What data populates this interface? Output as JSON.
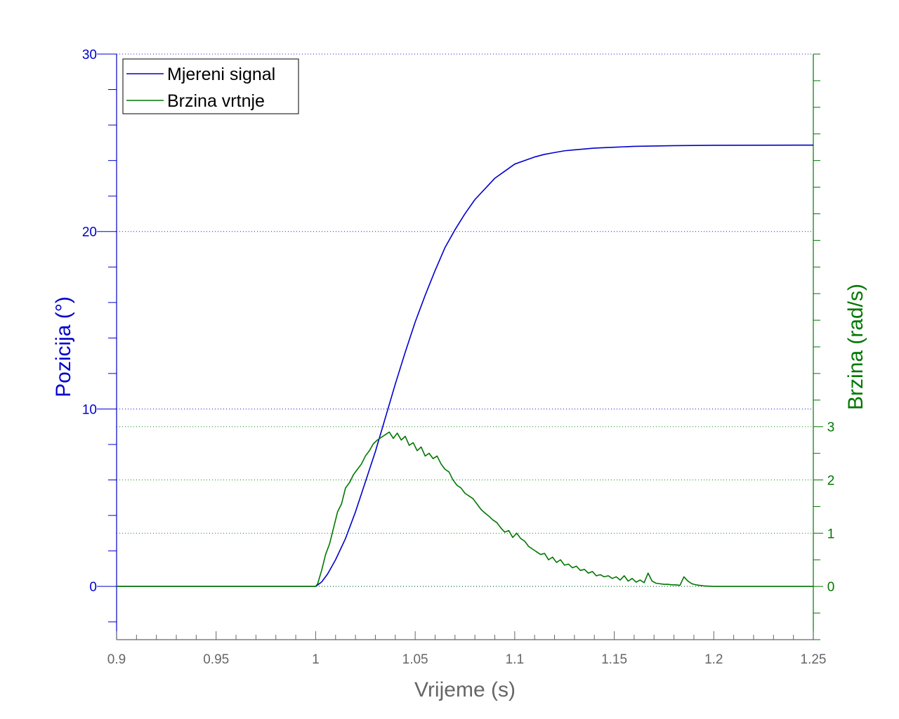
{
  "chart_data": {
    "type": "line",
    "title": "",
    "xlabel": "Vrijeme (s)",
    "ylabel_left": "Pozicija (°)",
    "ylabel_right": "Brzina (rad/s)",
    "xlim": [
      0.9,
      1.25
    ],
    "ylim_left": [
      -3,
      30
    ],
    "ylim_right": [
      -1,
      10
    ],
    "x_ticks": [
      "0.9",
      "0.95",
      "1",
      "1.05",
      "1.1",
      "1.15",
      "1.2",
      "1.25"
    ],
    "y_left_ticks": [
      "0",
      "10",
      "20",
      "30"
    ],
    "y_right_ticks": [
      "0",
      "1",
      "2",
      "3"
    ],
    "grid": "dotted horizontal",
    "legend_position": "top-left",
    "colors": {
      "left_axis": "#0000cc",
      "right_axis": "#007700",
      "axis_x": "#666666"
    },
    "series": [
      {
        "name": "Mjereni signal",
        "axis": "left",
        "color": "#0000cc",
        "x": [
          0.9,
          1.0,
          1.003,
          1.006,
          1.01,
          1.015,
          1.02,
          1.025,
          1.03,
          1.035,
          1.04,
          1.045,
          1.05,
          1.055,
          1.06,
          1.065,
          1.07,
          1.075,
          1.08,
          1.085,
          1.09,
          1.095,
          1.1,
          1.105,
          1.11,
          1.115,
          1.12,
          1.125,
          1.13,
          1.14,
          1.15,
          1.16,
          1.17,
          1.18,
          1.2,
          1.25
        ],
        "y": [
          0,
          0,
          0.25,
          0.7,
          1.5,
          2.7,
          4.2,
          5.9,
          7.6,
          9.5,
          11.4,
          13.2,
          14.9,
          16.4,
          17.8,
          19.1,
          20.1,
          21.0,
          21.8,
          22.4,
          23.0,
          23.4,
          23.8,
          24.0,
          24.2,
          24.35,
          24.45,
          24.55,
          24.6,
          24.7,
          24.75,
          24.8,
          24.82,
          24.84,
          24.86,
          24.87
        ]
      },
      {
        "name": "Brzina vrtnje",
        "axis": "right",
        "color": "#007700",
        "x": [
          0.9,
          1.0,
          1.001,
          1.003,
          1.005,
          1.007,
          1.009,
          1.011,
          1.013,
          1.015,
          1.017,
          1.019,
          1.021,
          1.023,
          1.025,
          1.027,
          1.029,
          1.031,
          1.033,
          1.035,
          1.037,
          1.039,
          1.041,
          1.043,
          1.045,
          1.047,
          1.049,
          1.051,
          1.053,
          1.055,
          1.057,
          1.059,
          1.061,
          1.063,
          1.065,
          1.067,
          1.069,
          1.071,
          1.073,
          1.075,
          1.077,
          1.079,
          1.081,
          1.083,
          1.085,
          1.087,
          1.089,
          1.091,
          1.093,
          1.095,
          1.097,
          1.099,
          1.101,
          1.103,
          1.105,
          1.107,
          1.109,
          1.111,
          1.113,
          1.115,
          1.117,
          1.119,
          1.121,
          1.123,
          1.125,
          1.127,
          1.129,
          1.131,
          1.133,
          1.135,
          1.137,
          1.139,
          1.141,
          1.143,
          1.145,
          1.147,
          1.149,
          1.151,
          1.153,
          1.155,
          1.157,
          1.159,
          1.161,
          1.163,
          1.165,
          1.167,
          1.169,
          1.171,
          1.173,
          1.175,
          1.177,
          1.179,
          1.181,
          1.183,
          1.185,
          1.187,
          1.189,
          1.191,
          1.193,
          1.195,
          1.2,
          1.25
        ],
        "y": [
          0,
          0,
          0.05,
          0.3,
          0.6,
          0.8,
          1.1,
          1.4,
          1.55,
          1.85,
          1.95,
          2.1,
          2.2,
          2.3,
          2.45,
          2.55,
          2.68,
          2.75,
          2.8,
          2.85,
          2.9,
          2.78,
          2.88,
          2.75,
          2.82,
          2.65,
          2.7,
          2.55,
          2.62,
          2.45,
          2.5,
          2.4,
          2.45,
          2.3,
          2.2,
          2.15,
          2.0,
          1.9,
          1.85,
          1.75,
          1.7,
          1.65,
          1.55,
          1.45,
          1.38,
          1.32,
          1.25,
          1.2,
          1.1,
          1.02,
          1.05,
          0.92,
          1.0,
          0.9,
          0.85,
          0.75,
          0.7,
          0.65,
          0.6,
          0.62,
          0.5,
          0.55,
          0.45,
          0.5,
          0.4,
          0.42,
          0.35,
          0.38,
          0.3,
          0.32,
          0.25,
          0.28,
          0.2,
          0.22,
          0.18,
          0.2,
          0.15,
          0.18,
          0.12,
          0.2,
          0.1,
          0.15,
          0.08,
          0.12,
          0.07,
          0.25,
          0.1,
          0.06,
          0.05,
          0.04,
          0.04,
          0.03,
          0.03,
          0.02,
          0.18,
          0.1,
          0.05,
          0.03,
          0.02,
          0.01,
          0.0,
          0.0
        ]
      }
    ]
  }
}
